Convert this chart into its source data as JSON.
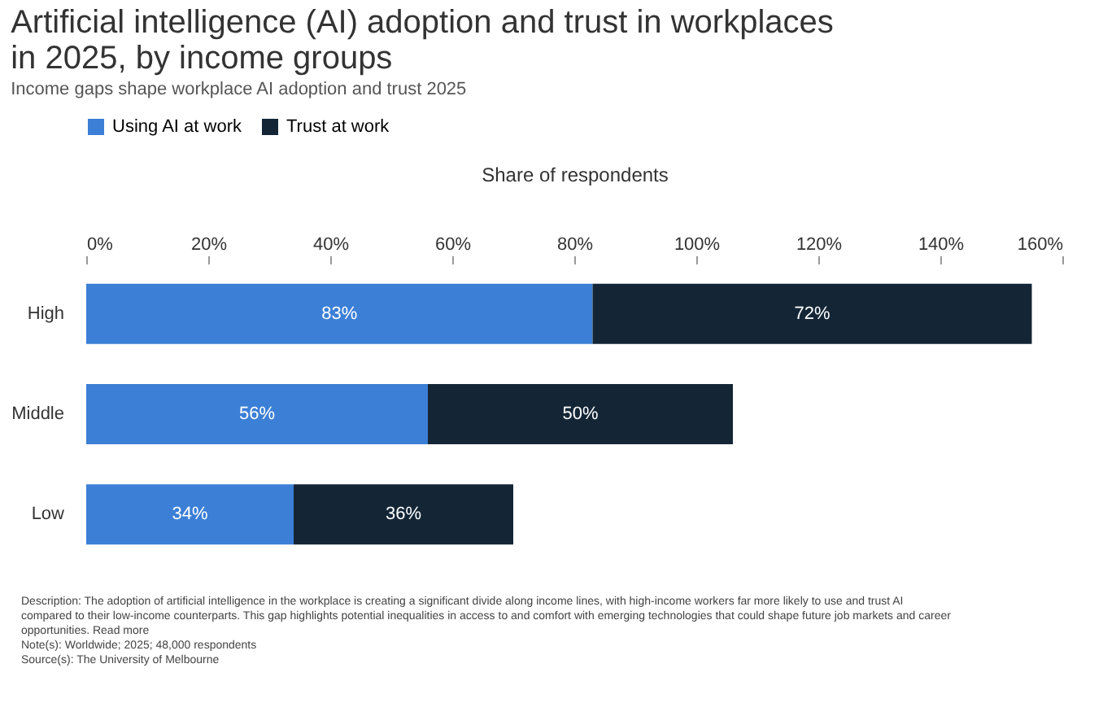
{
  "chart_data": {
    "type": "bar",
    "orientation": "horizontal",
    "stacked": true,
    "title": "Artificial intelligence (AI) adoption and trust in workplaces in 2025, by income groups",
    "subtitle": "Income gaps shape workplace AI adoption and trust 2025",
    "xlabel": "Share of respondents",
    "categories": [
      "High",
      "Middle",
      "Low"
    ],
    "series": [
      {
        "name": "Using AI at work",
        "color": "#3b7fd6",
        "values": [
          83,
          56,
          34
        ],
        "value_labels": [
          "83%",
          "56%",
          "34%"
        ]
      },
      {
        "name": "Trust at work",
        "color": "#142636",
        "values": [
          72,
          50,
          36
        ],
        "value_labels": [
          "72%",
          "50%",
          "36%"
        ]
      }
    ],
    "xlim": [
      0,
      160
    ],
    "xticks": [
      {
        "value": 0,
        "label": "0%"
      },
      {
        "value": 20,
        "label": "20%"
      },
      {
        "value": 40,
        "label": "40%"
      },
      {
        "value": 60,
        "label": "60%"
      },
      {
        "value": 80,
        "label": "80%"
      },
      {
        "value": 100,
        "label": "100%"
      },
      {
        "value": 120,
        "label": "120%"
      },
      {
        "value": 140,
        "label": "140%"
      },
      {
        "value": 160,
        "label": "160%"
      }
    ],
    "legend": "top",
    "grid": false,
    "annotations": [
      "Description: The adoption of artificial intelligence in the workplace is creating a significant divide along income lines, with high-income workers far more likely to use and trust AI compared to their low-income counterparts. This gap highlights potential inequalities in access to and comfort with emerging technologies that could shape future job markets and career opportunities. Read more",
      "Note(s): Worldwide; 2025; 48,000 respondents",
      "Source(s): The University of Melbourne"
    ]
  }
}
